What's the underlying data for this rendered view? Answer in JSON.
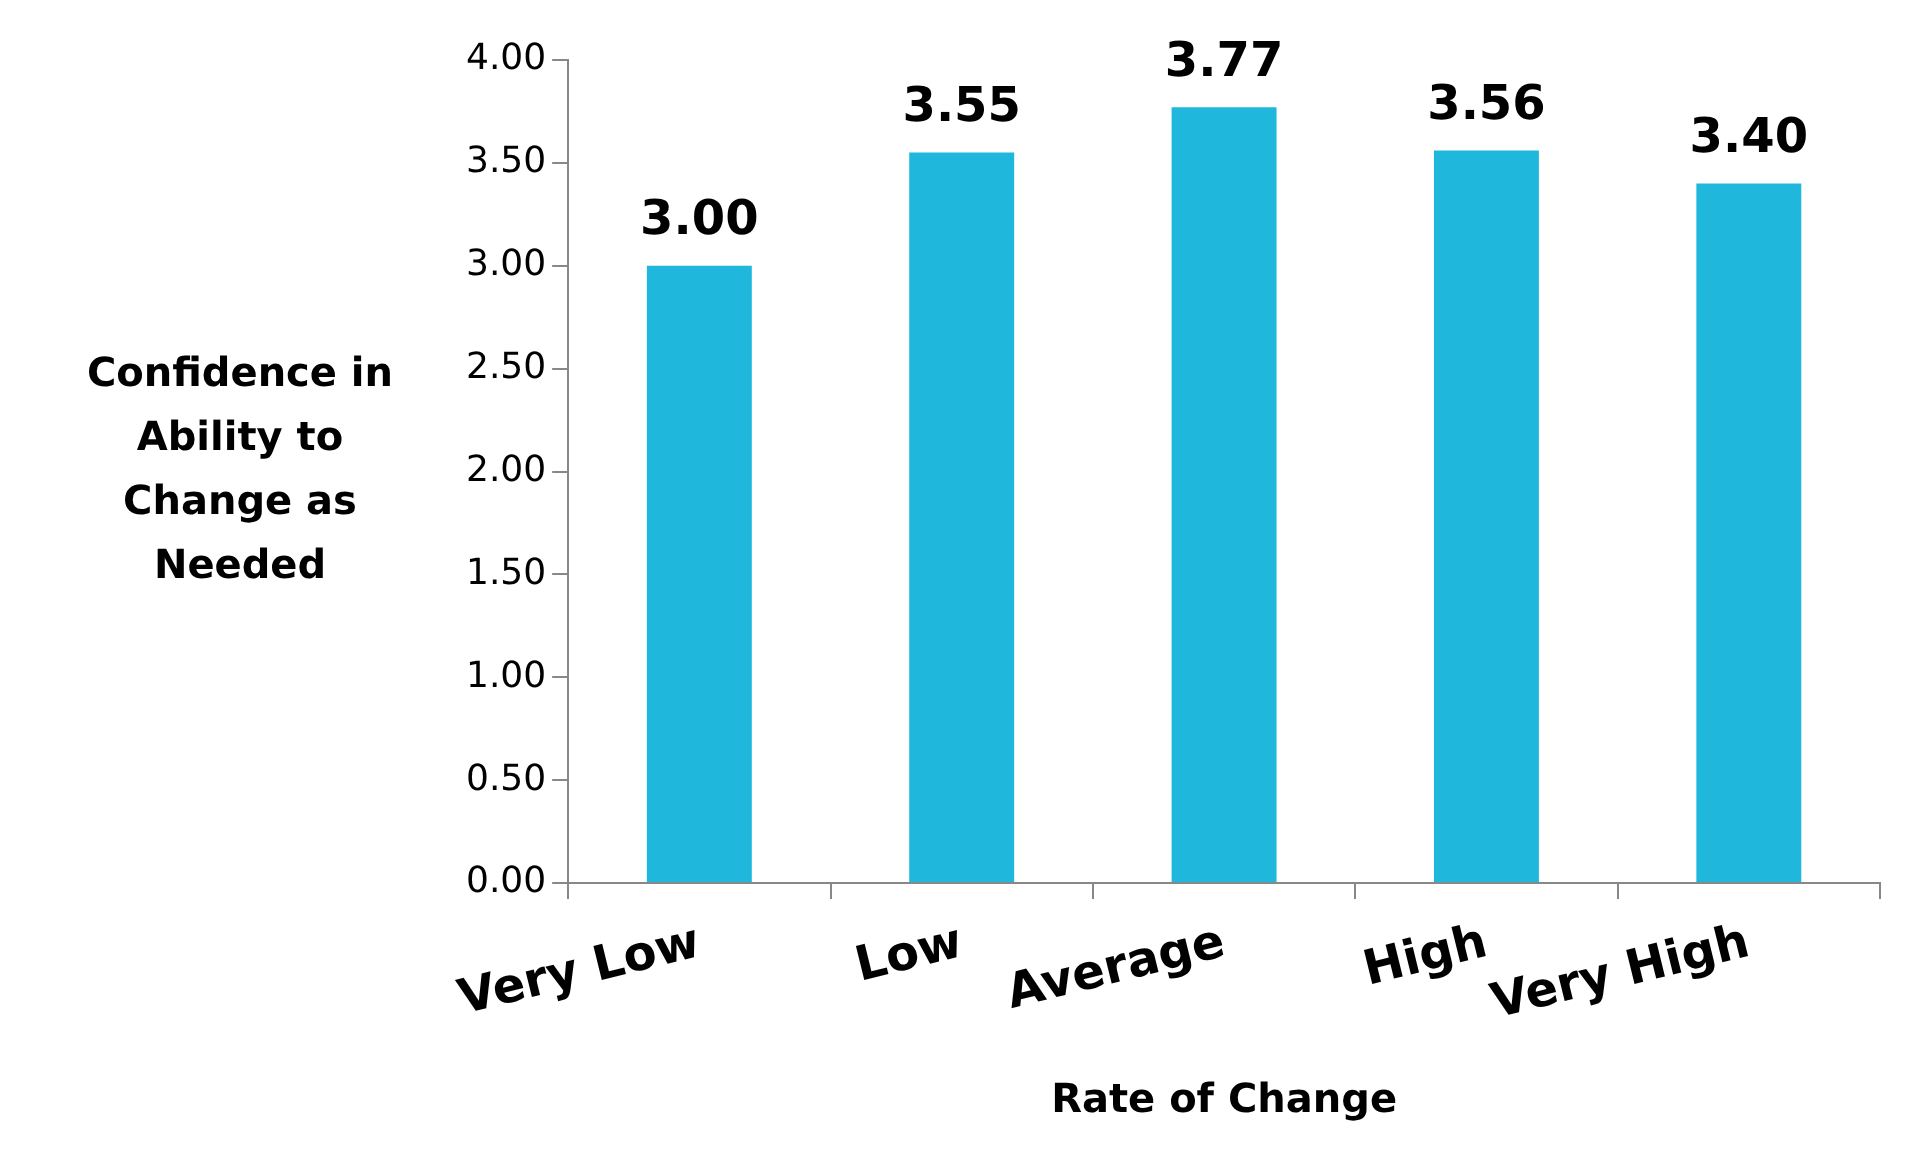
{
  "chart_data": {
    "type": "bar",
    "xlabel": "Rate of Change",
    "ylabel": "Confidence in Ability to Change as Needed",
    "categories": [
      "Very Low",
      "Low",
      "Average",
      "High",
      "Very High"
    ],
    "values": [
      3.0,
      3.55,
      3.77,
      3.56,
      3.4
    ],
    "value_labels": [
      "3.00",
      "3.55",
      "3.77",
      "3.56",
      "3.40"
    ],
    "color": "#1fb8dc",
    "ylim": [
      0,
      4
    ],
    "yticks": [
      {
        "value": 0,
        "label": "0.00"
      },
      {
        "value": 0.5,
        "label": "0.50"
      },
      {
        "value": 1,
        "label": "1.00"
      },
      {
        "value": 1.5,
        "label": "1.50"
      },
      {
        "value": 2,
        "label": "2.00"
      },
      {
        "value": 2.5,
        "label": "2.50"
      },
      {
        "value": 3,
        "label": "3.00"
      },
      {
        "value": 3.5,
        "label": "3.50"
      },
      {
        "value": 4,
        "label": "4.00"
      }
    ],
    "grid": false,
    "legend": false
  }
}
